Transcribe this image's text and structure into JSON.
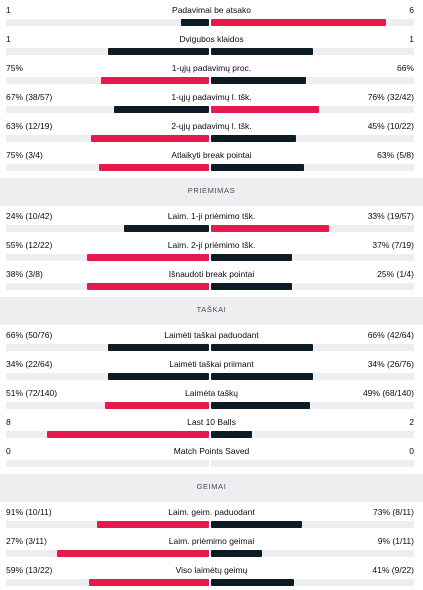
{
  "colors": {
    "win": "#e5194b",
    "lose": "#0c1b24",
    "track": "#eeeef0"
  },
  "sections": [
    {
      "title": "",
      "rows": [
        {
          "label": "Padavimai be atsako",
          "left": "1",
          "right": "6",
          "left_frac": 0.14,
          "right_frac": 0.86,
          "leader": "right"
        },
        {
          "label": "Dvigubos klaidos",
          "left": "1",
          "right": "1",
          "left_frac": 0.5,
          "right_frac": 0.5,
          "leader": "none"
        },
        {
          "label": "1-ųjų padavimų proc.",
          "left": "75%",
          "right": "66%",
          "left_frac": 0.53,
          "right_frac": 0.47,
          "leader": "left"
        },
        {
          "label": "1-ųjų padavimų l. tšk.",
          "left": "67% (38/57)",
          "right": "76% (32/42)",
          "left_frac": 0.47,
          "right_frac": 0.53,
          "leader": "right"
        },
        {
          "label": "2-ųjų padavimų l. tšk.",
          "left": "63% (12/19)",
          "right": "45% (10/22)",
          "left_frac": 0.58,
          "right_frac": 0.42,
          "leader": "left"
        },
        {
          "label": "Atlaikyti break pointai",
          "left": "75% (3/4)",
          "right": "63% (5/8)",
          "left_frac": 0.54,
          "right_frac": 0.46,
          "leader": "left"
        }
      ]
    },
    {
      "title": "PRIĖMIMAS",
      "rows": [
        {
          "label": "Laim. 1-ji priėmimo tšk.",
          "left": "24% (10/42)",
          "right": "33% (19/57)",
          "left_frac": 0.42,
          "right_frac": 0.58,
          "leader": "right"
        },
        {
          "label": "Laim. 2-ji priėmimo tšk.",
          "left": "55% (12/22)",
          "right": "37% (7/19)",
          "left_frac": 0.6,
          "right_frac": 0.4,
          "leader": "left"
        },
        {
          "label": "Išnaudoti break pointai",
          "left": "38% (3/8)",
          "right": "25% (1/4)",
          "left_frac": 0.6,
          "right_frac": 0.4,
          "leader": "left"
        }
      ]
    },
    {
      "title": "TAŠKAI",
      "rows": [
        {
          "label": "Laimėti taškai paduodant",
          "left": "66% (50/76)",
          "right": "66% (42/64)",
          "left_frac": 0.5,
          "right_frac": 0.5,
          "leader": "none"
        },
        {
          "label": "Laimėti taškai priimant",
          "left": "34% (22/64)",
          "right": "34% (26/76)",
          "left_frac": 0.5,
          "right_frac": 0.5,
          "leader": "none"
        },
        {
          "label": "Laimėta taškų",
          "left": "51% (72/140)",
          "right": "49% (68/140)",
          "left_frac": 0.51,
          "right_frac": 0.49,
          "leader": "left"
        },
        {
          "label": "Last 10 Balls",
          "left": "8",
          "right": "2",
          "left_frac": 0.8,
          "right_frac": 0.2,
          "leader": "left"
        },
        {
          "label": "Match Points Saved",
          "left": "0",
          "right": "0",
          "left_frac": 0,
          "right_frac": 0,
          "leader": "none"
        }
      ]
    },
    {
      "title": "GEIMAI",
      "rows": [
        {
          "label": "Laim. geim. paduodant",
          "left": "91% (10/11)",
          "right": "73% (8/11)",
          "left_frac": 0.55,
          "right_frac": 0.45,
          "leader": "left"
        },
        {
          "label": "Laim. priėmimo geimai",
          "left": "27% (3/11)",
          "right": "9% (1/11)",
          "left_frac": 0.75,
          "right_frac": 0.25,
          "leader": "left"
        },
        {
          "label": "Viso laimėtų geimų",
          "left": "59% (13/22)",
          "right": "41% (9/22)",
          "left_frac": 0.59,
          "right_frac": 0.41,
          "leader": "left"
        }
      ]
    }
  ]
}
